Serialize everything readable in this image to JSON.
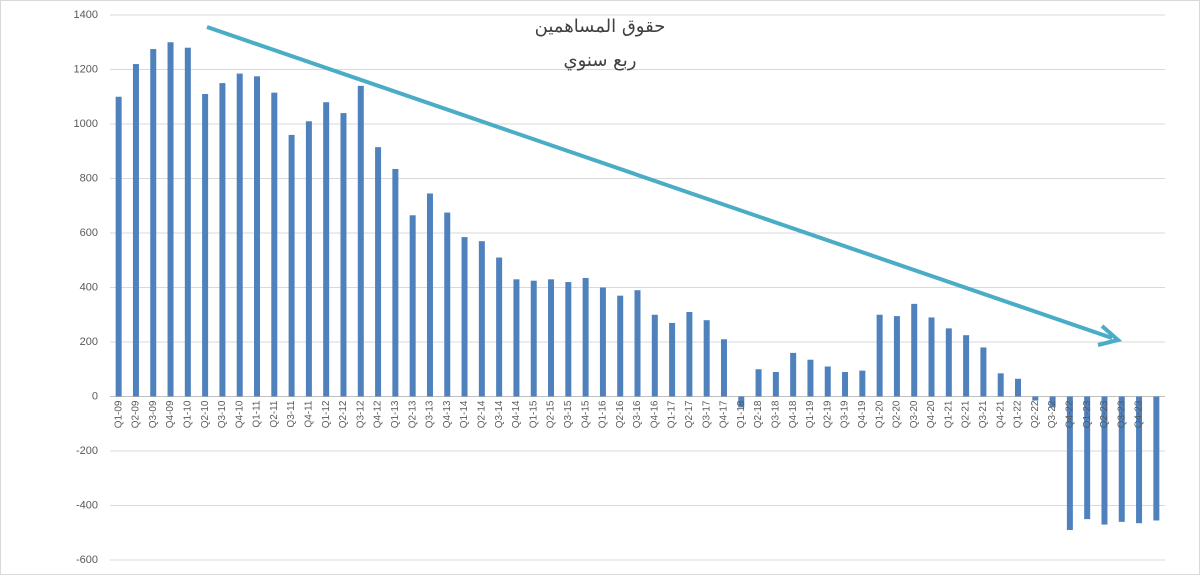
{
  "chart_data": {
    "type": "bar",
    "title": "حقوق المساهمين",
    "subtitle": "ربع سنوي",
    "categories": [
      "Q1-09",
      "Q2-09",
      "Q3-09",
      "Q4-09",
      "Q1-10",
      "Q2-10",
      "Q3-10",
      "Q4-10",
      "Q1-11",
      "Q2-11",
      "Q3-11",
      "Q4-11",
      "Q1-12",
      "Q2-12",
      "Q3-12",
      "Q4-12",
      "Q1-13",
      "Q2-13",
      "Q3-13",
      "Q4-13",
      "Q1-14",
      "Q2-14",
      "Q3-14",
      "Q4-14",
      "Q1-15",
      "Q2-15",
      "Q3-15",
      "Q4-15",
      "Q1-16",
      "Q2-16",
      "Q3-16",
      "Q4-16",
      "Q1-17",
      "Q2-17",
      "Q3-17",
      "Q4-17",
      "Q1-18",
      "Q2-18",
      "Q3-18",
      "Q4-18",
      "Q1-19",
      "Q2-19",
      "Q3-19",
      "Q4-19",
      "Q1-20",
      "Q2-20",
      "Q3-20",
      "Q4-20",
      "Q1-21",
      "Q2-21",
      "Q3-21",
      "Q4-21",
      "Q1-22",
      "Q2-22",
      "Q3-22",
      "Q4-22",
      "Q1-23",
      "Q2-23",
      "Q3-23",
      "Q4-23",
      null
    ],
    "values": [
      1100,
      1220,
      1275,
      1300,
      1280,
      1110,
      1150,
      1185,
      1175,
      1115,
      960,
      1010,
      1080,
      1040,
      1140,
      915,
      835,
      665,
      745,
      675,
      585,
      570,
      510,
      430,
      425,
      430,
      420,
      435,
      400,
      370,
      390,
      300,
      270,
      310,
      280,
      210,
      -40,
      100,
      90,
      160,
      135,
      110,
      90,
      95,
      300,
      295,
      340,
      290,
      250,
      225,
      180,
      85,
      65,
      -15,
      -40,
      -490,
      -450,
      -470,
      -460,
      -465,
      -455
    ],
    "color": "#4f81bd",
    "ylim": [
      -600,
      1400
    ],
    "yticks": [
      -600,
      -400,
      -200,
      0,
      200,
      400,
      600,
      800,
      1000,
      1200,
      1400
    ],
    "grid": true
  }
}
